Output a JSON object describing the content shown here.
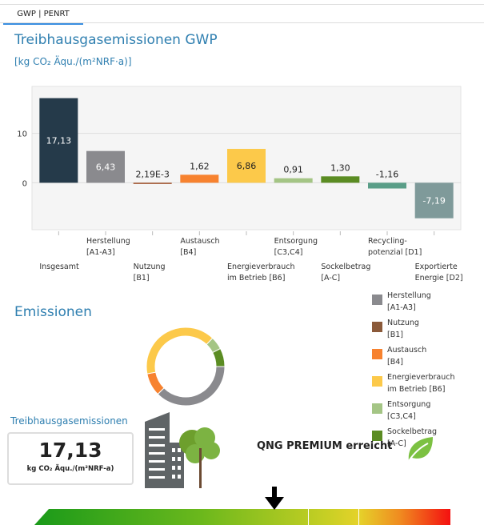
{
  "tab": {
    "label": "GWP | PENRT"
  },
  "header": {
    "title": "Treibhausgasemissionen GWP",
    "unit": "[kg CO₂ Äqu./(m²NRF·a)]"
  },
  "chart_data": {
    "type": "bar",
    "categories": [
      "Insgesamt",
      "Herstellung\n[A1-A3]",
      "Nutzung\n[B1]",
      "Austausch\n[B4]",
      "Energieverbrauch\nim Betrieb [B6]",
      "Entsorgung\n[C3,C4]",
      "Sockelbetrag\n[A-C]",
      "Recycling-\npotenzial [D1]",
      "Exportierte\nEnergie [D2]"
    ],
    "values": [
      17.13,
      6.43,
      0.00219,
      1.62,
      6.86,
      0.91,
      1.3,
      -1.16,
      -7.19
    ],
    "data_labels": [
      "17,13",
      "6,43",
      "2,19E-3",
      "1,62",
      "6,86",
      "0,91",
      "1,30",
      "-1,16",
      "-7,19"
    ],
    "colors": [
      "#253a4a",
      "#8a8a8e",
      "#a0522d",
      "#f7822f",
      "#fcc94a",
      "#a4c585",
      "#5b8c23",
      "#5a9e88",
      "#7f9a9a"
    ],
    "yticks": [
      "0",
      "10"
    ],
    "ylim": [
      -9.5,
      19.5
    ],
    "grid": true
  },
  "donut": {
    "type": "pie",
    "title": "Emissionen",
    "labels": [
      "Herstellung\n[A1-A3]",
      "Nutzung\n[B1]",
      "Austausch\n[B4]",
      "Energieverbrauch\nim Betrieb [B6]",
      "Entsorgung\n[C3,C4]",
      "Sockelbetrag\n[A-C]"
    ],
    "values": [
      6.43,
      0.00219,
      1.62,
      6.86,
      0.91,
      1.3
    ],
    "colors": [
      "#8a8a8e",
      "#8b5a3a",
      "#f7822f",
      "#fcc94a",
      "#a4c585",
      "#5b8c23"
    ],
    "legend": "right"
  },
  "kpi": {
    "label": "Treibhausgasemissionen",
    "value": "17,13",
    "unit": "kg CO₂ Äqu./(m²NRF-a)"
  },
  "qng": {
    "text": "QNG PREMIUM erreicht"
  }
}
